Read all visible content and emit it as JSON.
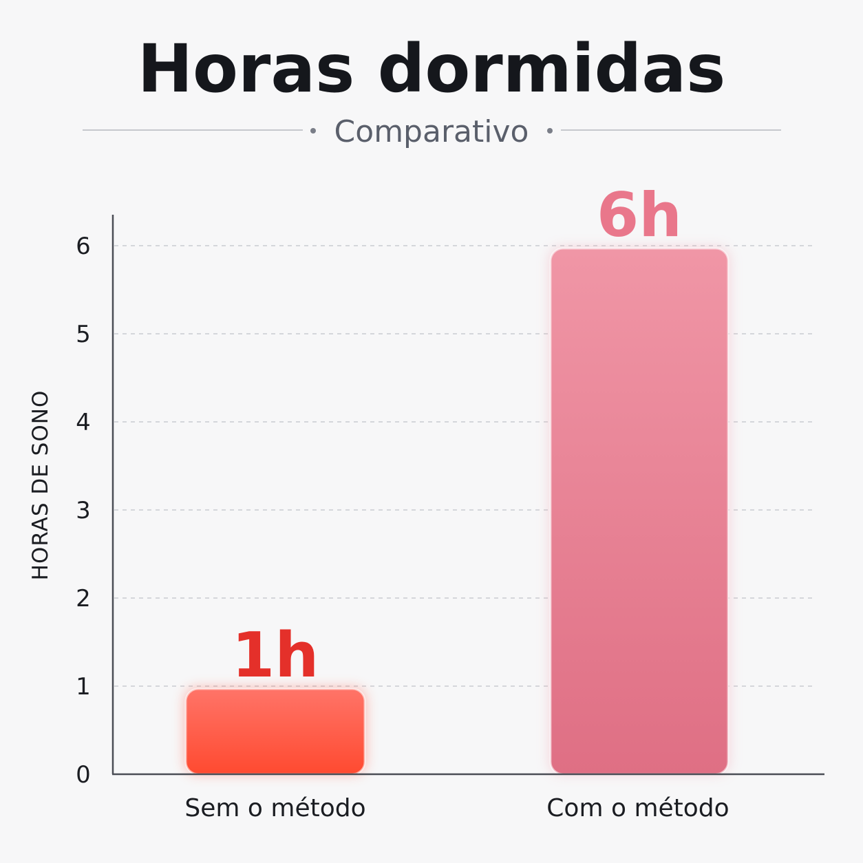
{
  "chart_data": {
    "type": "bar",
    "title": "Horas dormidas",
    "subtitle": "Comparativo",
    "ylabel": "HORAS DE SONO",
    "xlabel": "",
    "categories": [
      "Sem o método",
      "Com o método"
    ],
    "values": [
      1,
      6
    ],
    "value_labels": [
      "1h",
      "6h"
    ],
    "ylim": [
      0,
      6
    ],
    "yticks": [
      0,
      1,
      2,
      3,
      4,
      5,
      6
    ],
    "grid": true,
    "legend": "none",
    "colors": {
      "bar_low_top": "#ff7468",
      "bar_low_bottom": "#ff4a30",
      "bar_high_top": "#f096a6",
      "bar_high_bottom": "#df6f84",
      "label_low": "#e4302a",
      "label_high": "#e9778b",
      "grid": "#c9cbd0",
      "axis": "#4a4d55"
    }
  }
}
